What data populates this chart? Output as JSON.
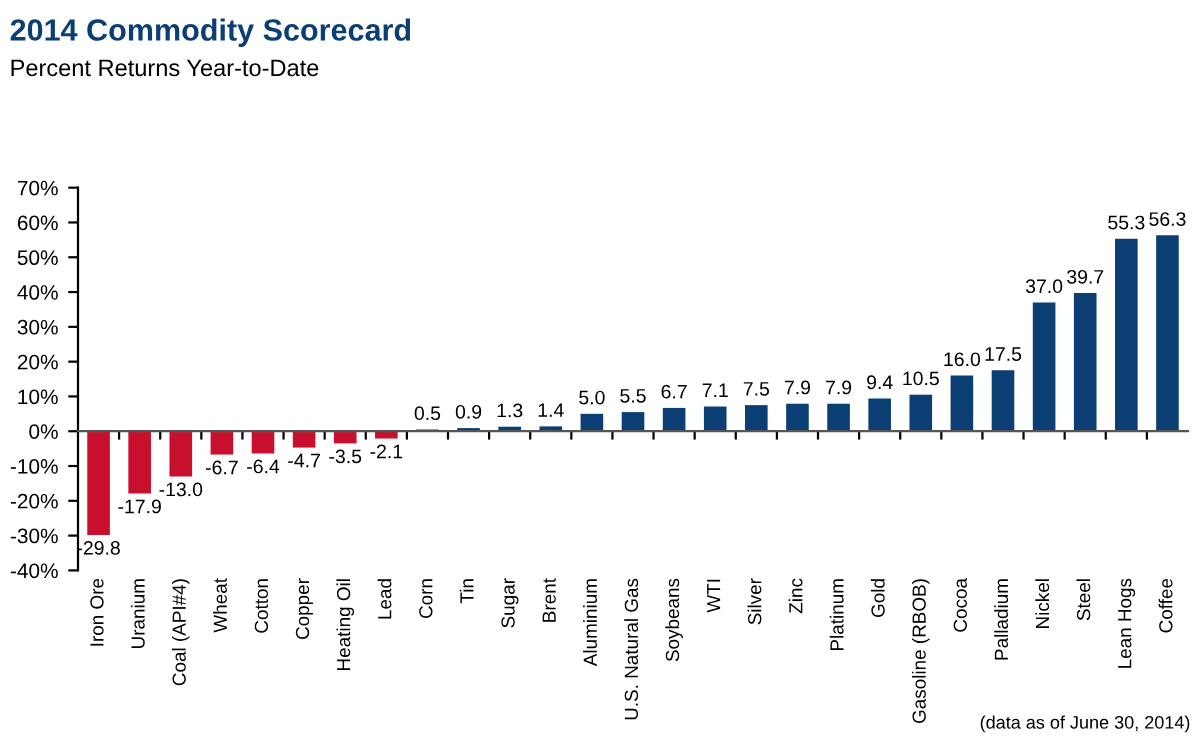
{
  "chart_data": {
    "type": "bar",
    "title": "2014 Commodity Scorecard",
    "subtitle": "Percent Returns Year-to-Date",
    "categories": [
      "Iron Ore",
      "Uranium",
      "Coal (API#4)",
      "Wheat",
      "Cotton",
      "Copper",
      "Heating Oil",
      "Lead",
      "Corn",
      "Tin",
      "Sugar",
      "Brent",
      "Aluminium",
      "U.S. Natural Gas",
      "Soybeans",
      "WTI",
      "Silver",
      "Zinc",
      "Platinum",
      "Gold",
      "Gasoline (RBOB)",
      "Cocoa",
      "Palladium",
      "Nickel",
      "Steel",
      "Lean Hogs",
      "Coffee"
    ],
    "values": [
      -29.8,
      -17.9,
      -13.0,
      -6.7,
      -6.4,
      -4.7,
      -3.5,
      -2.1,
      0.5,
      0.9,
      1.3,
      1.4,
      5.0,
      5.5,
      6.7,
      7.1,
      7.5,
      7.9,
      7.9,
      9.4,
      10.5,
      16.0,
      17.5,
      37.0,
      39.7,
      55.3,
      56.3
    ],
    "value_labels": [
      "-29.8",
      "-17.9",
      "-13.0",
      "-6.7",
      "-6.4",
      "-4.7",
      "-3.5",
      "-2.1",
      "0.5",
      "0.9",
      "1.3",
      "1.4",
      "5.0",
      "5.5",
      "6.7",
      "7.1",
      "7.5",
      "7.9",
      "7.9",
      "9.4",
      "10.5",
      "16.0",
      "17.5",
      "37.0",
      "39.7",
      "55.3",
      "56.3"
    ],
    "colors": [
      "#c8102e",
      "#c8102e",
      "#c8102e",
      "#c8102e",
      "#c8102e",
      "#c8102e",
      "#c8102e",
      "#c8102e",
      "#0b3f73",
      "#0b3f73",
      "#0b3f73",
      "#0b3f73",
      "#0b3f73",
      "#0b3f73",
      "#0b3f73",
      "#0b3f73",
      "#0b3f73",
      "#0b3f73",
      "#0b3f73",
      "#0b3f73",
      "#0b3f73",
      "#0b3f73",
      "#0b3f73",
      "#0b3f73",
      "#0b3f73",
      "#0b3f73",
      "#0b3f73"
    ],
    "ylim": [
      -40,
      70
    ],
    "yticks": [
      {
        "value": -40,
        "label": "-40%"
      },
      {
        "value": -30,
        "label": "-30%"
      },
      {
        "value": -20,
        "label": "-20%"
      },
      {
        "value": -10,
        "label": "-10%"
      },
      {
        "value": 0,
        "label": "0%"
      },
      {
        "value": 10,
        "label": "10%"
      },
      {
        "value": 20,
        "label": "20%"
      },
      {
        "value": 30,
        "label": "30%"
      },
      {
        "value": 40,
        "label": "40%"
      },
      {
        "value": 50,
        "label": "50%"
      },
      {
        "value": 60,
        "label": "60%"
      },
      {
        "value": 70,
        "label": "70%"
      }
    ],
    "legend": false,
    "annotations": [
      "(data as of June 30, 2014)"
    ]
  }
}
